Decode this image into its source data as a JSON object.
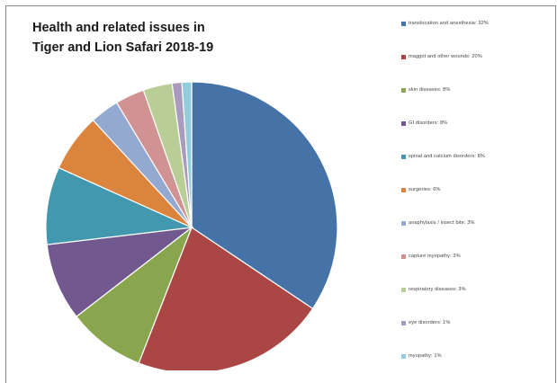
{
  "chart_data": {
    "type": "pie",
    "title_lines": [
      "Health and related issues in",
      "Tiger and Lion Safari 2018-19"
    ],
    "legend_position": "right",
    "start": "12 o'clock, clockwise",
    "slices": [
      {
        "label": "translocation and anesthesia",
        "value": 32,
        "pct_text": "32%",
        "color": "#4572a7"
      },
      {
        "label": "maggot and other wounds",
        "value": 20,
        "pct_text": "20%",
        "color": "#aa4643"
      },
      {
        "label": "skin diseases",
        "value": 8,
        "pct_text": "8%",
        "color": "#89a54e"
      },
      {
        "label": "GI disorders",
        "value": 8,
        "pct_text": "8%",
        "color": "#71588f"
      },
      {
        "label": "spinal and calcium disorders",
        "value": 8,
        "pct_text": "8%",
        "color": "#4198af"
      },
      {
        "label": "surgeries",
        "value": 6,
        "pct_text": "6%",
        "color": "#db843d"
      },
      {
        "label": "anaphylaxis / insect bite",
        "value": 3,
        "pct_text": "3%",
        "color": "#93a9cf"
      },
      {
        "label": "capture myopathy",
        "value": 3,
        "pct_text": "3%",
        "color": "#d19392"
      },
      {
        "label": "respiratory diseases",
        "value": 3,
        "pct_text": "3%",
        "color": "#b9cd96"
      },
      {
        "label": "eye disorders",
        "value": 1,
        "pct_text": "1%",
        "color": "#a99bbd"
      },
      {
        "label": "myopathy",
        "value": 1,
        "pct_text": "1%",
        "color": "#92cddc"
      }
    ]
  }
}
